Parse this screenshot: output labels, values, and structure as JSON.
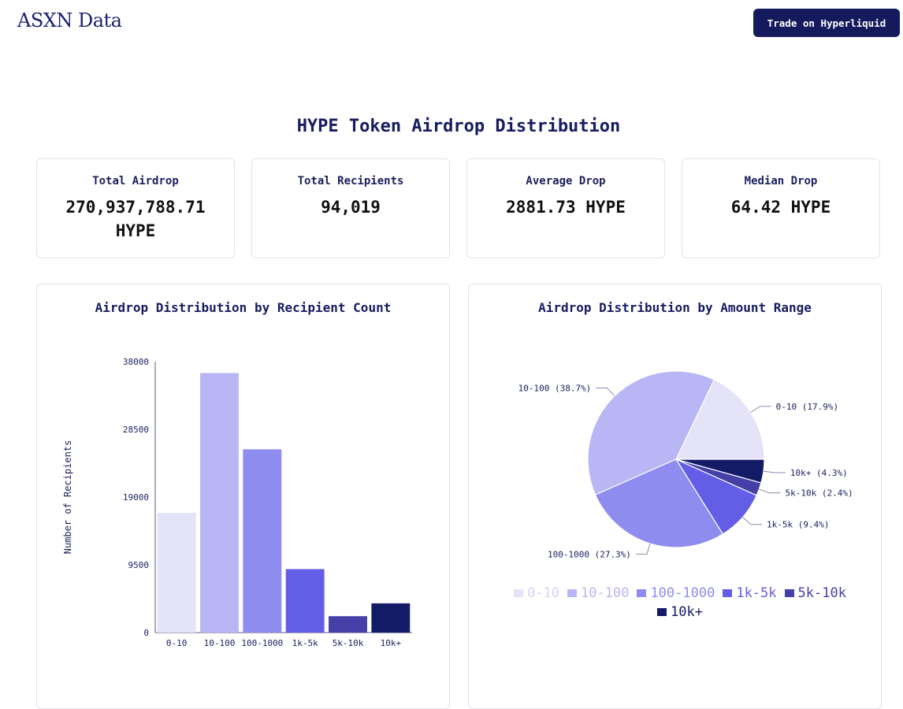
{
  "header": {
    "brand": "ASXN Data",
    "trade_button": "Trade on Hyperliquid"
  },
  "page_title": "HYPE Token Airdrop Distribution",
  "stats": [
    {
      "label": "Total Airdrop",
      "value": "270,937,788.71 HYPE"
    },
    {
      "label": "Total Recipients",
      "value": "94,019"
    },
    {
      "label": "Average Drop",
      "value": "2881.73 HYPE"
    },
    {
      "label": "Median Drop",
      "value": "64.42 HYPE"
    }
  ],
  "colors": [
    "#e5e3f8",
    "#b9b6f5",
    "#8f8cef",
    "#645de6",
    "#453fa8",
    "#131a66"
  ],
  "chart_data": [
    {
      "type": "bar",
      "title": "Airdrop Distribution by Recipient Count",
      "categories": [
        "0-10",
        "10-100",
        "100-1000",
        "1k-5k",
        "5k-10k",
        "10k+"
      ],
      "values": [
        16800,
        36400,
        25700,
        8900,
        2300,
        4100
      ],
      "ylabel": "Number of Recipients",
      "xlabel": "",
      "ylim": [
        0,
        38000
      ],
      "yticks": [
        "0",
        "9500",
        "19000",
        "28500",
        "38000"
      ]
    },
    {
      "type": "pie",
      "title": "Airdrop Distribution by Amount Range",
      "categories": [
        "0-10",
        "10-100",
        "100-1000",
        "1k-5k",
        "5k-10k",
        "10k+"
      ],
      "values": [
        17.9,
        38.7,
        27.3,
        9.4,
        2.4,
        4.3
      ],
      "slice_labels": [
        "0-10 (17.9%)",
        "10-100 (38.7%)",
        "100-1000 (27.3%)",
        "1k-5k (9.4%)",
        "5k-10k (2.4%)",
        "10k+ (4.3%)"
      ],
      "legend": [
        "0-10",
        "10-100",
        "100-1000",
        "1k-5k",
        "5k-10k",
        "10k+"
      ]
    }
  ]
}
